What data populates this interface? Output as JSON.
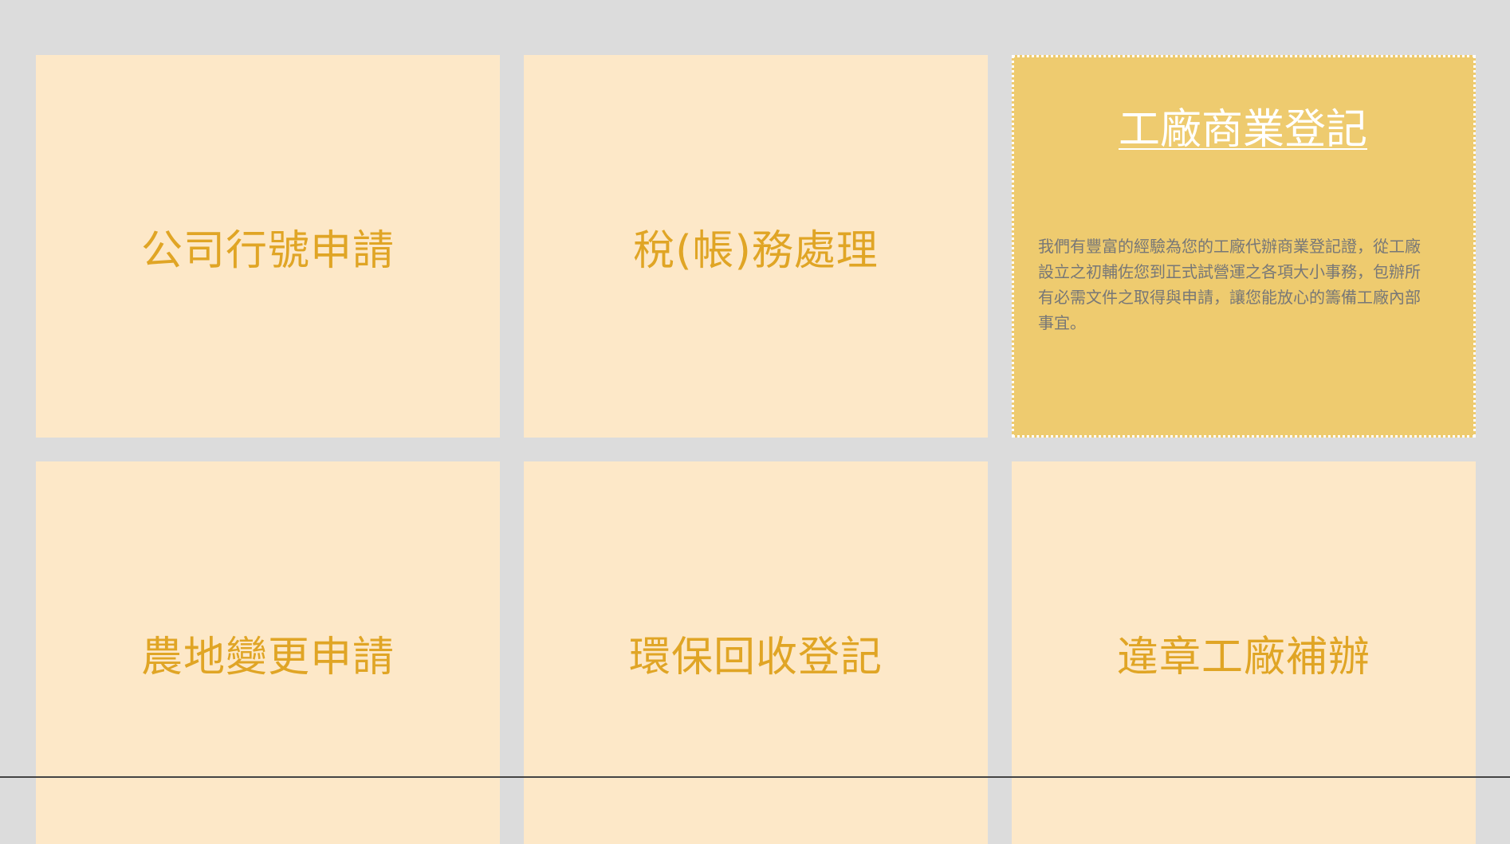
{
  "services": [
    {
      "label": "公司行號申請"
    },
    {
      "label": "稅(帳)務處理"
    },
    {
      "label": "工廠商業登記",
      "description": "我們有豐富的經驗為您的工廠代辦商業登記證，從工廠設立之初輔佐您到正式試營運之各項大小事務，包辦所有必需文件之取得與申請，讓您能放心的籌備工廠內部事宜。"
    },
    {
      "label": "農地變更申請"
    },
    {
      "label": "環保回收登記"
    },
    {
      "label": "違章工廠補辦"
    }
  ],
  "colors": {
    "page_bg": "#dcdcdc",
    "card_bg": "#fde8c8",
    "card_text": "#e0a525",
    "active_bg": "#eecb6f",
    "active_title": "#ffffff",
    "active_desc": "#777777"
  }
}
